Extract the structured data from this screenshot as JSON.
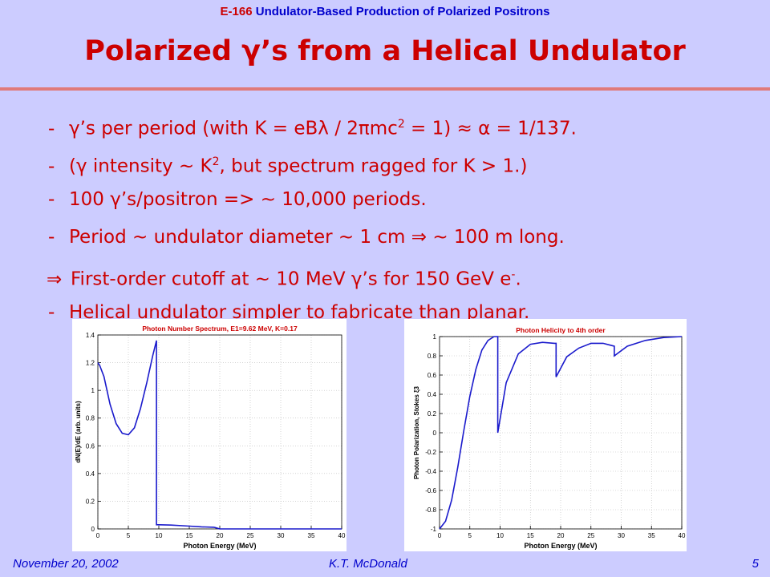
{
  "header": {
    "code": "E-166",
    "rest": "Undulator-Based Production of Polarized Positrons"
  },
  "title": "Polarized γ’s from a Helical Undulator",
  "bullets": {
    "b1": {
      "marker": "-",
      "pre": "γ’s per period (with K = eBλ / 2πmc",
      "sup": "2",
      "post": " = 1) ≈ α = 1/137."
    },
    "b2": {
      "marker": "-",
      "pre": "(γ intensity ~ K",
      "sup": "2",
      "post": ", but spectrum ragged for K > 1.)"
    },
    "b3": {
      "marker": "-",
      "text": "100 γ’s/positron => ~ 10,000 periods."
    },
    "b4": {
      "marker": "-",
      "text": "Period ~ undulator diameter ~ 1 cm ⇒ ~ 100 m long."
    },
    "b5": {
      "marker": "⇒",
      "pre": "First-order cutoff at ~ 10 MeV γ’s for 150 GeV e",
      "sup": "-",
      "post": "."
    },
    "b6": {
      "marker": "-",
      "text": "Helical undulator simpler to fabricate than planar."
    }
  },
  "chart_data": [
    {
      "type": "line",
      "title": "Photon Number Spectrum, E1=9.62 MeV, K=0.17",
      "xlabel": "Photon Energy (MeV)",
      "ylabel": "dN(E)/dE (arb. units)",
      "xlim": [
        0,
        40
      ],
      "ylim": [
        0,
        1.4
      ],
      "xticks": [
        0,
        5,
        10,
        15,
        20,
        25,
        30,
        35,
        40
      ],
      "yticks": [
        0,
        0.2,
        0.4,
        0.6,
        0.8,
        1,
        1.2,
        1.4
      ],
      "ytick_labels": [
        "0",
        "0.2",
        "0.4",
        "0.6",
        "0.8",
        "1",
        "1.2",
        "1.4"
      ],
      "line_color": "#1a1acc",
      "series": [
        {
          "x": [
            0,
            0.3,
            1,
            2,
            3,
            4,
            5,
            6,
            7,
            8,
            9,
            9.62,
            9.62,
            10,
            12,
            15,
            17,
            19,
            19.24,
            20,
            25,
            30,
            35,
            40
          ],
          "y": [
            1.2,
            1.18,
            1.1,
            0.9,
            0.76,
            0.69,
            0.68,
            0.73,
            0.87,
            1.05,
            1.25,
            1.36,
            0.03,
            0.03,
            0.028,
            0.02,
            0.015,
            0.012,
            0.01,
            0.0,
            0.0,
            0.0,
            0.0,
            0.0
          ]
        }
      ]
    },
    {
      "type": "line",
      "title": "Photon Helicity to 4th order",
      "xlabel": "Photon Energy (MeV)",
      "ylabel": "Photon Polarization, Stokes ξ3",
      "xlim": [
        0,
        40
      ],
      "ylim": [
        -1,
        1
      ],
      "xticks": [
        0,
        5,
        10,
        15,
        20,
        25,
        30,
        35,
        40
      ],
      "yticks": [
        -1,
        -0.8,
        -0.6,
        -0.4,
        -0.2,
        0,
        0.2,
        0.4,
        0.6,
        0.8,
        1
      ],
      "ytick_labels": [
        "-1",
        "-0.8",
        "-0.6",
        "-0.4",
        "-0.2",
        "0",
        "0.2",
        "0.4",
        "0.6",
        "0.8",
        "1"
      ],
      "line_color": "#1a1acc",
      "series": [
        {
          "x": [
            0,
            1,
            2,
            3,
            4,
            5,
            6,
            7,
            8,
            9,
            9.62,
            9.62,
            11,
            13,
            15,
            17,
            19,
            19.24,
            19.24,
            21,
            23,
            25,
            27,
            28.86,
            28.86,
            31,
            34,
            37,
            40
          ],
          "y": [
            -1,
            -0.92,
            -0.7,
            -0.36,
            0.02,
            0.38,
            0.66,
            0.86,
            0.96,
            1.0,
            1.0,
            0.0,
            0.52,
            0.82,
            0.92,
            0.94,
            0.93,
            0.93,
            0.58,
            0.79,
            0.88,
            0.93,
            0.93,
            0.9,
            0.8,
            0.9,
            0.96,
            0.99,
            1.0
          ]
        }
      ]
    }
  ],
  "footer": {
    "date": "November 20, 2002",
    "author": "K.T. McDonald",
    "page": "5"
  }
}
